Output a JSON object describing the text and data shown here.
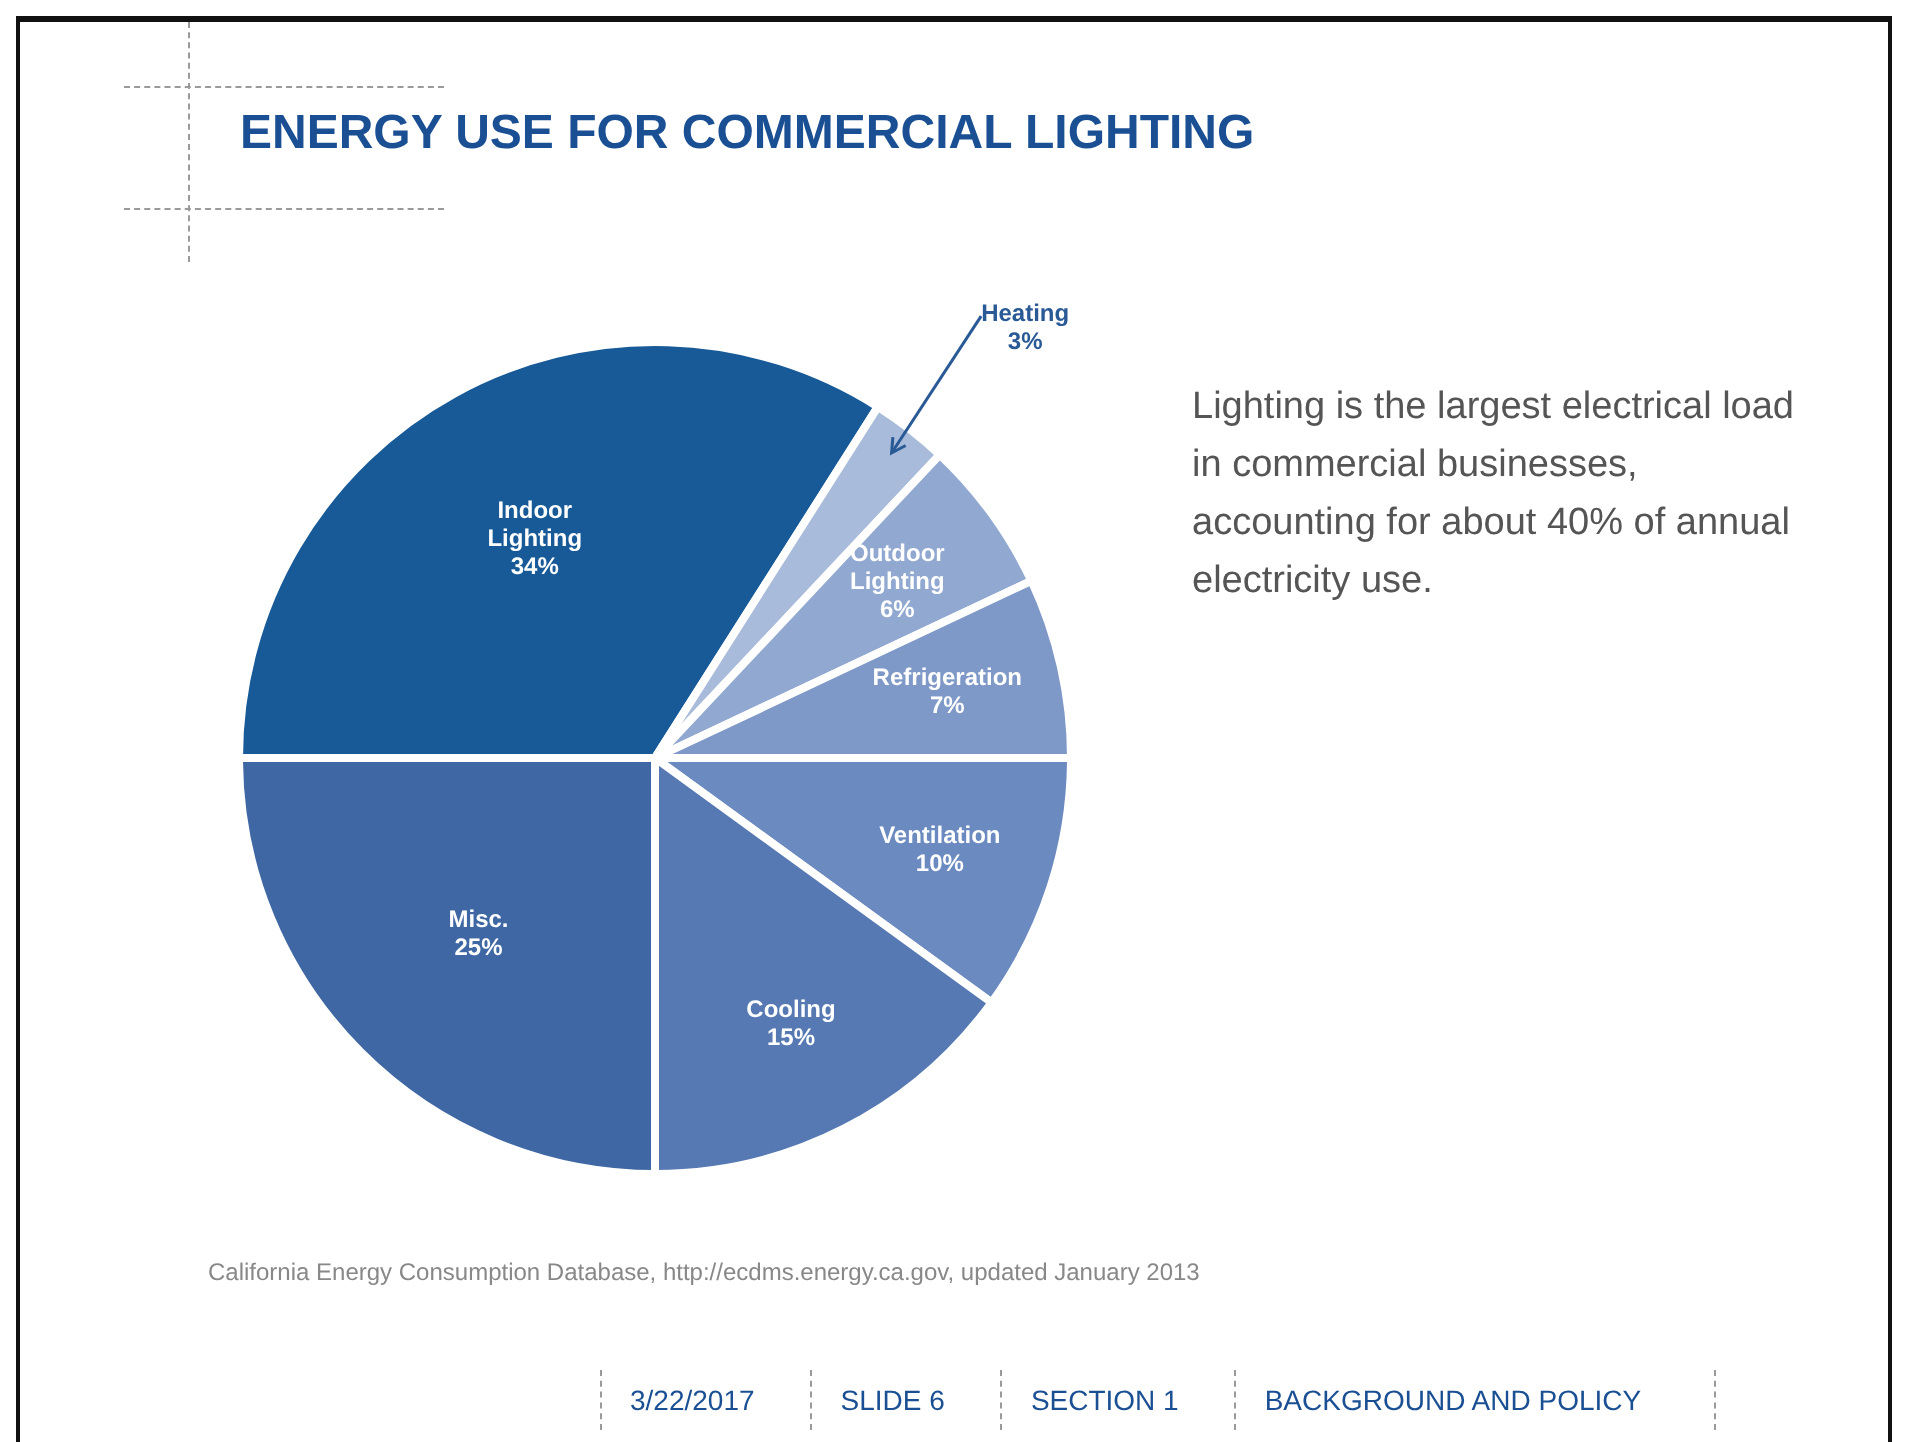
{
  "chart_data": {
    "type": "pie",
    "title": "ENERGY USE FOR COMMERCIAL LIGHTING",
    "categories": [
      "Indoor Lighting",
      "Heating",
      "Outdoor Lighting",
      "Refrigeration",
      "Ventilation",
      "Cooling",
      "Misc."
    ],
    "values": [
      34,
      3,
      6,
      7,
      10,
      15,
      25
    ],
    "colors": [
      "#175a97",
      "#a9bbda",
      "#91a8d0",
      "#7e98c7",
      "#6b8abf",
      "#5679b3",
      "#3f67a3"
    ],
    "value_labels": [
      "34%",
      "3%",
      "6%",
      "7%",
      "10%",
      "15%",
      "25%"
    ],
    "legend": false,
    "annotations": [
      "Lighting is the largest electrical load in commercial businesses, accounting for about 40% of annual electricity use.",
      "California Energy Consumption Database, http://ecdms.energy.ca.gov, updated January 2013",
      "3/22/2017",
      "SLIDE 6",
      "SECTION 1",
      "BACKGROUND AND POLICY"
    ]
  }
}
